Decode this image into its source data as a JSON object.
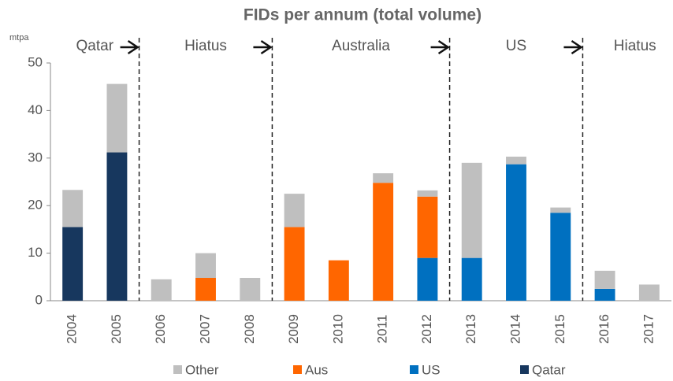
{
  "chart_data": {
    "type": "bar",
    "stacked": true,
    "title": "FIDs per annum (total volume)",
    "y_axis_label": "mtpa",
    "annotations": [
      "Qatar",
      "Hiatus",
      "Australia",
      "US",
      "Hiatus"
    ],
    "categories": [
      "2004",
      "2005",
      "2006",
      "2007",
      "2008",
      "2009",
      "2010",
      "2011",
      "2012",
      "2013",
      "2014",
      "2015",
      "2016",
      "2017"
    ],
    "series": [
      {
        "name": "Other",
        "color": "#bfbfbf",
        "values": [
          7.8,
          14.4,
          4.5,
          5.2,
          4.8,
          7,
          0,
          2,
          1.3,
          20,
          1.6,
          1.1,
          3.8,
          3.4
        ]
      },
      {
        "name": "Aus",
        "color": "#ff6600",
        "values": [
          0,
          0,
          0,
          4.8,
          0,
          15.5,
          8.5,
          24.8,
          12.9,
          0,
          0,
          0,
          0,
          0
        ]
      },
      {
        "name": "US",
        "color": "#0070c0",
        "values": [
          0,
          0,
          0,
          0,
          0,
          0,
          0,
          0,
          9,
          9,
          28.7,
          18.5,
          2.5,
          0
        ]
      },
      {
        "name": "Qatar",
        "color": "#17375e",
        "values": [
          15.5,
          31.2,
          0,
          0,
          0,
          0,
          0,
          0,
          0,
          0,
          0,
          0,
          0,
          0
        ]
      }
    ],
    "ylim": [
      0,
      50
    ],
    "yticks": [
      0,
      10,
      20,
      30,
      40,
      50
    ],
    "grid": false,
    "legend": "bottom"
  }
}
